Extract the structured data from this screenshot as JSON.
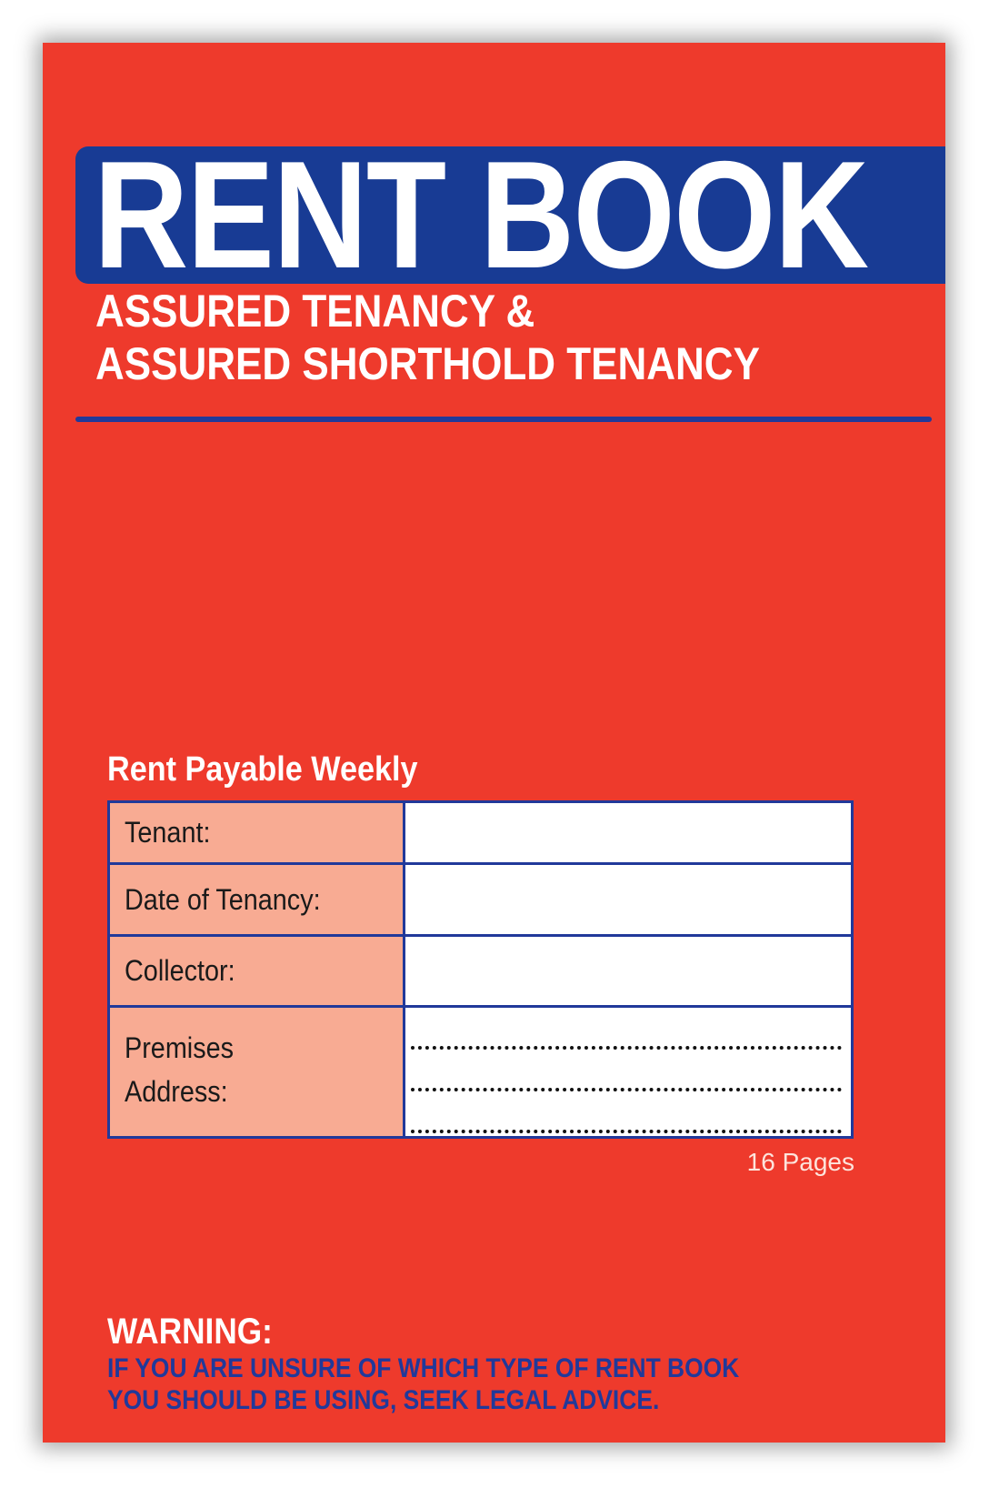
{
  "cover": {
    "title": "RENT BOOK",
    "subtitle_lines": [
      "ASSURED TENANCY &",
      "ASSURED SHORTHOLD TENANCY"
    ],
    "colors": {
      "background": "#ee3a2c",
      "band": "#183b94",
      "label_cell": "#f8ab93"
    }
  },
  "form": {
    "heading": "Rent Payable Weekly",
    "fields": [
      {
        "label": "Tenant:"
      },
      {
        "label": "Date of Tenancy:"
      },
      {
        "label": "Collector:"
      },
      {
        "label": "Premises Address:",
        "label_lines": [
          "Premises",
          "Address:"
        ]
      }
    ],
    "pages": "16 Pages"
  },
  "warning": {
    "heading": "WARNING:",
    "lines": [
      "IF YOU ARE UNSURE OF WHICH TYPE OF RENT BOOK",
      "YOU SHOULD BE USING, SEEK LEGAL ADVICE."
    ]
  }
}
